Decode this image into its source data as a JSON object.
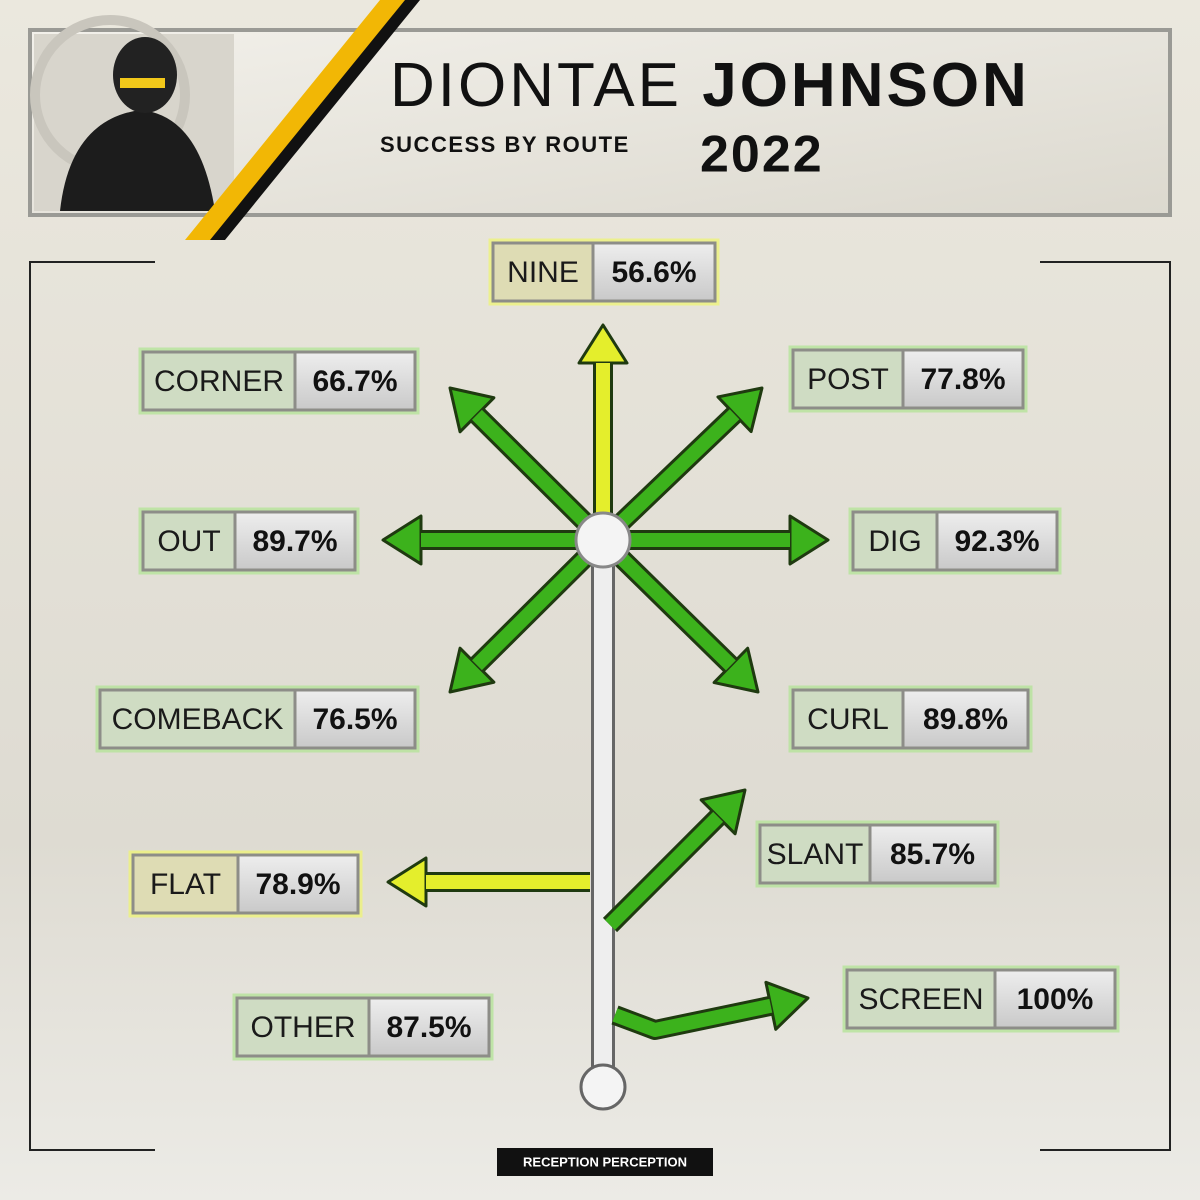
{
  "header": {
    "first_name": "DIONTAE",
    "last_name": "JOHNSON",
    "subtitle": "SUCCESS BY ROUTE",
    "year": "2022"
  },
  "routes": [
    {
      "name": "NINE",
      "rate": "56.6%",
      "color": "#e4ee2c"
    },
    {
      "name": "CORNER",
      "rate": "66.7%",
      "color": "#3cb21c"
    },
    {
      "name": "POST",
      "rate": "77.8%",
      "color": "#3cb21c"
    },
    {
      "name": "OUT",
      "rate": "89.7%",
      "color": "#3cb21c"
    },
    {
      "name": "DIG",
      "rate": "92.3%",
      "color": "#3cb21c"
    },
    {
      "name": "COMEBACK",
      "rate": "76.5%",
      "color": "#3cb21c"
    },
    {
      "name": "CURL",
      "rate": "89.8%",
      "color": "#3cb21c"
    },
    {
      "name": "FLAT",
      "rate": "78.9%",
      "color": "#e4ee2c"
    },
    {
      "name": "SLANT",
      "rate": "85.7%",
      "color": "#3cb21c"
    },
    {
      "name": "OTHER",
      "rate": "87.5%",
      "color": "#3cb21c"
    },
    {
      "name": "SCREEN",
      "rate": "100%",
      "color": "#3cb21c"
    }
  ],
  "footer": {
    "brand": "RECEPTION PERCEPTION"
  }
}
